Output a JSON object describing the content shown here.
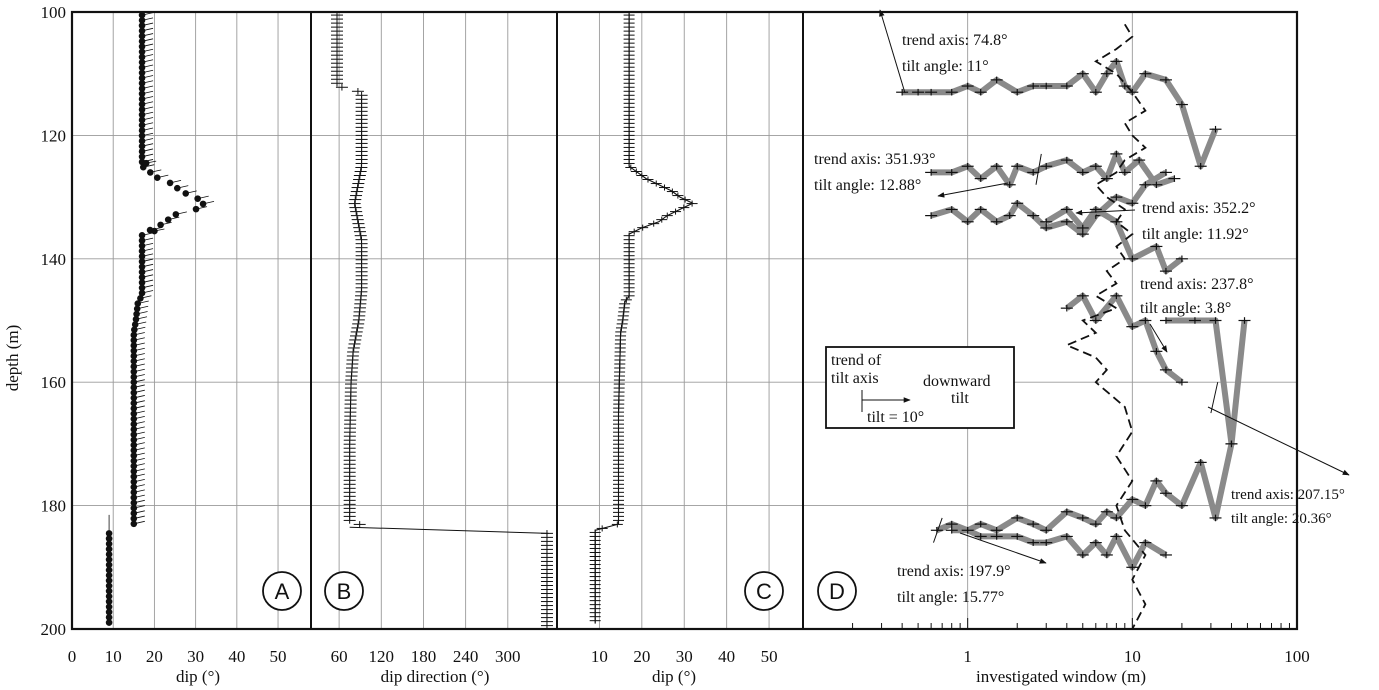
{
  "chart_data": [
    {
      "panel": "A",
      "type": "scatter",
      "marker": "dot-with-tadpole-tail",
      "xlabel": "dip (°)",
      "ylabel": "depth (m)",
      "xlim": [
        0,
        58
      ],
      "ylim": [
        200,
        100
      ],
      "xticks": [
        "0",
        "10",
        "20",
        "30",
        "40",
        "50"
      ],
      "yticks": [
        "100",
        "120",
        "140",
        "160",
        "180",
        "200"
      ],
      "grid": true,
      "profile": [
        [
          100,
          17
        ],
        [
          125,
          17
        ],
        [
          126,
          19
        ],
        [
          127,
          21
        ],
        [
          128,
          25
        ],
        [
          129,
          26
        ],
        [
          130,
          30
        ],
        [
          131,
          32
        ],
        [
          132,
          30
        ],
        [
          133,
          24
        ],
        [
          134,
          23
        ],
        [
          135,
          20
        ],
        [
          136,
          17
        ],
        [
          146,
          17
        ],
        [
          147,
          16
        ],
        [
          150,
          15.5
        ],
        [
          152,
          15
        ],
        [
          165,
          15
        ],
        [
          183,
          15
        ]
      ],
      "lower_profile": [
        [
          184,
          9
        ],
        [
          199,
          9
        ]
      ],
      "outliers": [
        [
          124.5,
          18
        ],
        [
          135.5,
          20
        ]
      ]
    },
    {
      "panel": "B",
      "type": "scatter",
      "marker": "plus",
      "xlabel": "dip direction (°)",
      "xlim": [
        20,
        370
      ],
      "xticks": [
        "60",
        "120",
        "180",
        "240",
        "300"
      ],
      "ylim": [
        200,
        100
      ],
      "grid": true,
      "profile": [
        [
          100,
          57
        ],
        [
          112,
          57
        ],
        [
          113,
          92
        ],
        [
          125,
          92
        ],
        [
          128,
          87
        ],
        [
          131,
          82
        ],
        [
          134,
          87
        ],
        [
          137,
          92
        ],
        [
          145,
          92
        ],
        [
          150,
          88
        ],
        [
          155,
          80
        ],
        [
          160,
          77
        ],
        [
          170,
          75
        ],
        [
          183,
          75
        ],
        [
          184,
          360
        ],
        [
          199,
          360
        ]
      ]
    },
    {
      "panel": "C",
      "type": "line",
      "marker": "plus",
      "xlabel": "dip (°)",
      "xlim": [
        0,
        58
      ],
      "xticks": [
        "10",
        "20",
        "30",
        "40",
        "50"
      ],
      "ylim": [
        200,
        100
      ],
      "grid": true,
      "profile": [
        [
          100,
          17
        ],
        [
          125,
          17
        ],
        [
          126,
          19
        ],
        [
          127,
          21
        ],
        [
          128,
          24
        ],
        [
          129,
          27
        ],
        [
          130,
          29
        ],
        [
          131,
          32
        ],
        [
          132,
          29
        ],
        [
          133,
          26
        ],
        [
          134,
          24
        ],
        [
          135,
          20
        ],
        [
          136,
          17
        ],
        [
          146,
          17
        ],
        [
          147,
          16
        ],
        [
          150,
          15.5
        ],
        [
          152,
          15
        ],
        [
          165,
          14.5
        ],
        [
          183,
          14.5
        ],
        [
          184,
          9
        ],
        [
          199,
          9
        ]
      ]
    },
    {
      "panel": "D",
      "type": "line",
      "xlabel": "investigated window (m)",
      "xscale": "log",
      "xlim": [
        0.1,
        100
      ],
      "xticks": [
        "1",
        "10",
        "100"
      ],
      "ylim": [
        200,
        100
      ],
      "grid": true,
      "series": [
        {
          "style": "thick gray line with plus markers",
          "points": [
            [
              0.4,
              113
            ],
            [
              0.5,
              113
            ],
            [
              0.6,
              113
            ],
            [
              0.8,
              113
            ],
            [
              1,
              112
            ],
            [
              1.2,
              113
            ],
            [
              1.5,
              111
            ],
            [
              2,
              113
            ],
            [
              2.5,
              112
            ],
            [
              3,
              112
            ],
            [
              4,
              112
            ],
            [
              5,
              110
            ],
            [
              6,
              113
            ],
            [
              7,
              110
            ],
            [
              8,
              108
            ],
            [
              9,
              112
            ],
            [
              10,
              113
            ],
            [
              12,
              110
            ],
            [
              16,
              111
            ],
            [
              20,
              115
            ],
            [
              26,
              125
            ],
            [
              32,
              119
            ]
          ]
        },
        {
          "style": "thick gray line with plus markers",
          "points": [
            [
              0.6,
              126
            ],
            [
              0.8,
              126
            ],
            [
              1,
              125
            ],
            [
              1.2,
              127
            ],
            [
              1.5,
              125
            ],
            [
              1.8,
              128
            ],
            [
              2,
              125
            ],
            [
              2.5,
              126
            ],
            [
              3,
              125
            ],
            [
              4,
              124
            ],
            [
              5,
              126
            ],
            [
              6,
              125
            ],
            [
              7,
              127
            ],
            [
              8,
              123
            ],
            [
              9,
              126
            ],
            [
              11,
              124
            ],
            [
              14,
              128
            ],
            [
              18,
              127
            ]
          ]
        },
        {
          "style": "thick gray line with plus markers",
          "points": [
            [
              0.6,
              133
            ],
            [
              0.8,
              132
            ],
            [
              1,
              134
            ],
            [
              1.2,
              132
            ],
            [
              1.5,
              134
            ],
            [
              1.8,
              133
            ],
            [
              2,
              131
            ],
            [
              2.5,
              133
            ],
            [
              3,
              135
            ],
            [
              4,
              134
            ],
            [
              5,
              136
            ],
            [
              6,
              133
            ],
            [
              8,
              130
            ],
            [
              10,
              131
            ],
            [
              12,
              128
            ],
            [
              16,
              126
            ]
          ]
        },
        {
          "style": "thick gray line with plus markers",
          "points": [
            [
              3,
              134
            ],
            [
              4,
              132
            ],
            [
              5,
              135
            ],
            [
              6,
              132
            ],
            [
              8,
              134
            ],
            [
              10,
              140
            ],
            [
              14,
              138
            ],
            [
              16,
              142
            ],
            [
              20,
              140
            ]
          ]
        },
        {
          "style": "thick gray line with plus markers",
          "points": [
            [
              4,
              148
            ],
            [
              5,
              146
            ],
            [
              6,
              150
            ],
            [
              8,
              146
            ],
            [
              10,
              151
            ],
            [
              12,
              150
            ],
            [
              14,
              155
            ],
            [
              16,
              158
            ],
            [
              20,
              160
            ]
          ]
        },
        {
          "style": "thick gray line with plus markers",
          "points": [
            [
              16,
              150
            ],
            [
              24,
              150
            ],
            [
              32,
              150
            ],
            [
              40,
              170
            ],
            [
              48,
              150
            ]
          ]
        },
        {
          "style": "thick gray line with plus markers",
          "points": [
            [
              0.65,
              184
            ],
            [
              0.8,
              183
            ],
            [
              1,
              184
            ],
            [
              1.2,
              183
            ],
            [
              1.5,
              184
            ],
            [
              2,
              182
            ],
            [
              2.5,
              183
            ],
            [
              3,
              184
            ],
            [
              4,
              181
            ],
            [
              5,
              182
            ],
            [
              6,
              183
            ],
            [
              7,
              181
            ],
            [
              8,
              182
            ],
            [
              10,
              179
            ],
            [
              12,
              180
            ],
            [
              14,
              176
            ],
            [
              16,
              178
            ],
            [
              20,
              180
            ],
            [
              26,
              173
            ],
            [
              32,
              182
            ],
            [
              40,
              170
            ]
          ]
        },
        {
          "style": "thick gray line with plus markers",
          "points": [
            [
              0.8,
              184
            ],
            [
              1,
              184
            ],
            [
              1.2,
              185
            ],
            [
              1.5,
              185
            ],
            [
              2,
              185
            ],
            [
              2.5,
              186
            ],
            [
              3,
              186
            ],
            [
              4,
              185
            ],
            [
              5,
              188
            ],
            [
              6,
              186
            ],
            [
              7,
              188
            ],
            [
              8,
              185
            ],
            [
              10,
              190
            ],
            [
              12,
              186
            ],
            [
              16,
              188
            ]
          ]
        },
        {
          "style": "dashed black line",
          "points": [
            [
              9,
              102
            ],
            [
              10,
              104
            ],
            [
              8,
              106
            ],
            [
              6,
              108
            ],
            [
              8,
              110
            ],
            [
              10,
              113
            ],
            [
              12,
              116
            ],
            [
              9,
              118
            ],
            [
              10,
              120
            ],
            [
              12,
              122
            ],
            [
              9,
              124
            ],
            [
              8,
              126
            ],
            [
              6,
              128
            ],
            [
              7,
              130
            ],
            [
              9,
              132
            ],
            [
              8,
              134
            ],
            [
              10,
              136
            ],
            [
              8,
              138
            ],
            [
              9,
              140
            ],
            [
              7,
              142
            ],
            [
              8,
              144
            ],
            [
              6,
              146
            ],
            [
              8,
              148
            ],
            [
              5,
              150
            ],
            [
              6,
              152
            ],
            [
              4,
              154
            ],
            [
              6,
              156
            ],
            [
              7,
              158
            ],
            [
              6,
              160
            ],
            [
              9,
              164
            ],
            [
              10,
              168
            ],
            [
              8,
              172
            ],
            [
              10,
              176
            ],
            [
              8,
              180
            ],
            [
              9,
              184
            ],
            [
              12,
              188
            ],
            [
              10,
              192
            ],
            [
              12,
              196
            ],
            [
              10,
              200
            ]
          ]
        }
      ],
      "annotations": [
        {
          "trend": "trend axis: 74.8°",
          "tilt": "tilt angle: 11°"
        },
        {
          "trend": "trend axis: 351.93°",
          "tilt": "tilt angle: 12.88°"
        },
        {
          "trend": "trend axis: 352.2°",
          "tilt": "tilt angle: 11.92°"
        },
        {
          "trend": "trend axis: 237.8°",
          "tilt": "tilt angle: 3.8°"
        },
        {
          "trend": "trend axis: 207.15°",
          "tilt": "tilt angle: 20.36°"
        },
        {
          "trend": "trend axis: 197.9°",
          "tilt": "tilt angle: 15.77°"
        }
      ],
      "legend_box": {
        "trend_line1": "trend of",
        "trend_line2": "tilt axis",
        "downward_line1": "downward",
        "downward_line2": "tilt",
        "scale": "tilt = 10°"
      }
    }
  ],
  "panel_labels": [
    "A",
    "B",
    "C",
    "D"
  ],
  "colors": {
    "gray_series": "#8a8a8a",
    "ink": "#111111",
    "grid": "#9a9a9a"
  }
}
